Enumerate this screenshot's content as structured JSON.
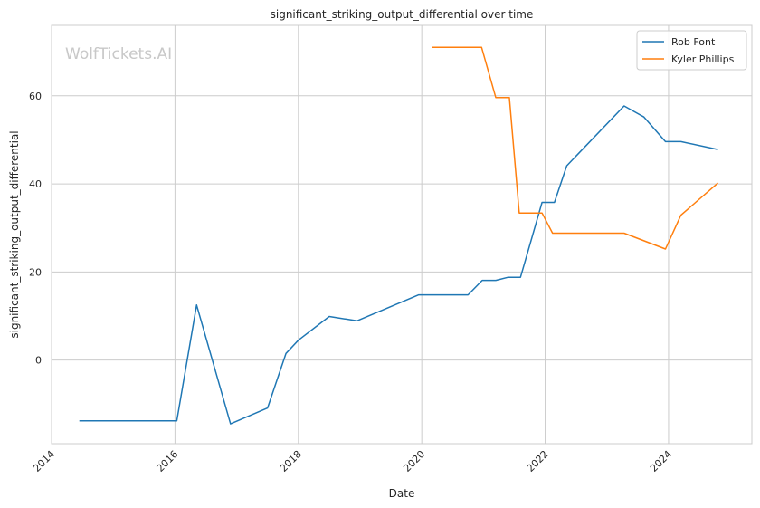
{
  "chart_data": {
    "type": "line",
    "title": "significant_striking_output_differential over time",
    "xlabel": "Date",
    "ylabel": "significant_striking_output_differential",
    "watermark": "WolfTickets.AI",
    "xlim": [
      2014.0,
      2025.35
    ],
    "ylim": [
      -19,
      76
    ],
    "x_ticks": [
      2014,
      2016,
      2018,
      2020,
      2022,
      2024
    ],
    "y_ticks": [
      0,
      20,
      40,
      60
    ],
    "grid": true,
    "legend_position": "top-right",
    "colors": {
      "series1": "#1f77b4",
      "series2": "#ff7f0e"
    },
    "series": [
      {
        "name": "Rob Font",
        "color": "#1f77b4",
        "points": [
          {
            "x": 2014.45,
            "y": -13.8
          },
          {
            "x": 2016.03,
            "y": -13.8
          },
          {
            "x": 2016.35,
            "y": 12.5
          },
          {
            "x": 2016.9,
            "y": -14.5
          },
          {
            "x": 2017.5,
            "y": -10.9
          },
          {
            "x": 2017.8,
            "y": 1.5
          },
          {
            "x": 2018.0,
            "y": 4.5
          },
          {
            "x": 2018.5,
            "y": 9.9
          },
          {
            "x": 2018.95,
            "y": 8.9
          },
          {
            "x": 2019.95,
            "y": 14.8
          },
          {
            "x": 2020.75,
            "y": 14.8
          },
          {
            "x": 2020.98,
            "y": 18.1
          },
          {
            "x": 2021.2,
            "y": 18.1
          },
          {
            "x": 2021.4,
            "y": 18.8
          },
          {
            "x": 2021.6,
            "y": 18.8
          },
          {
            "x": 2021.95,
            "y": 35.8
          },
          {
            "x": 2022.15,
            "y": 35.8
          },
          {
            "x": 2022.35,
            "y": 44.1
          },
          {
            "x": 2023.28,
            "y": 57.7
          },
          {
            "x": 2023.6,
            "y": 55.2
          },
          {
            "x": 2023.95,
            "y": 49.6
          },
          {
            "x": 2024.2,
            "y": 49.6
          },
          {
            "x": 2024.8,
            "y": 47.8
          }
        ]
      },
      {
        "name": "Kyler Phillips",
        "color": "#ff7f0e",
        "points": [
          {
            "x": 2020.17,
            "y": 71.0
          },
          {
            "x": 2020.97,
            "y": 71.0
          },
          {
            "x": 2021.2,
            "y": 59.6
          },
          {
            "x": 2021.42,
            "y": 59.6
          },
          {
            "x": 2021.58,
            "y": 33.4
          },
          {
            "x": 2021.95,
            "y": 33.4
          },
          {
            "x": 2022.12,
            "y": 28.8
          },
          {
            "x": 2023.28,
            "y": 28.8
          },
          {
            "x": 2023.95,
            "y": 25.2
          },
          {
            "x": 2024.2,
            "y": 32.9
          },
          {
            "x": 2024.8,
            "y": 40.2
          }
        ]
      }
    ]
  }
}
